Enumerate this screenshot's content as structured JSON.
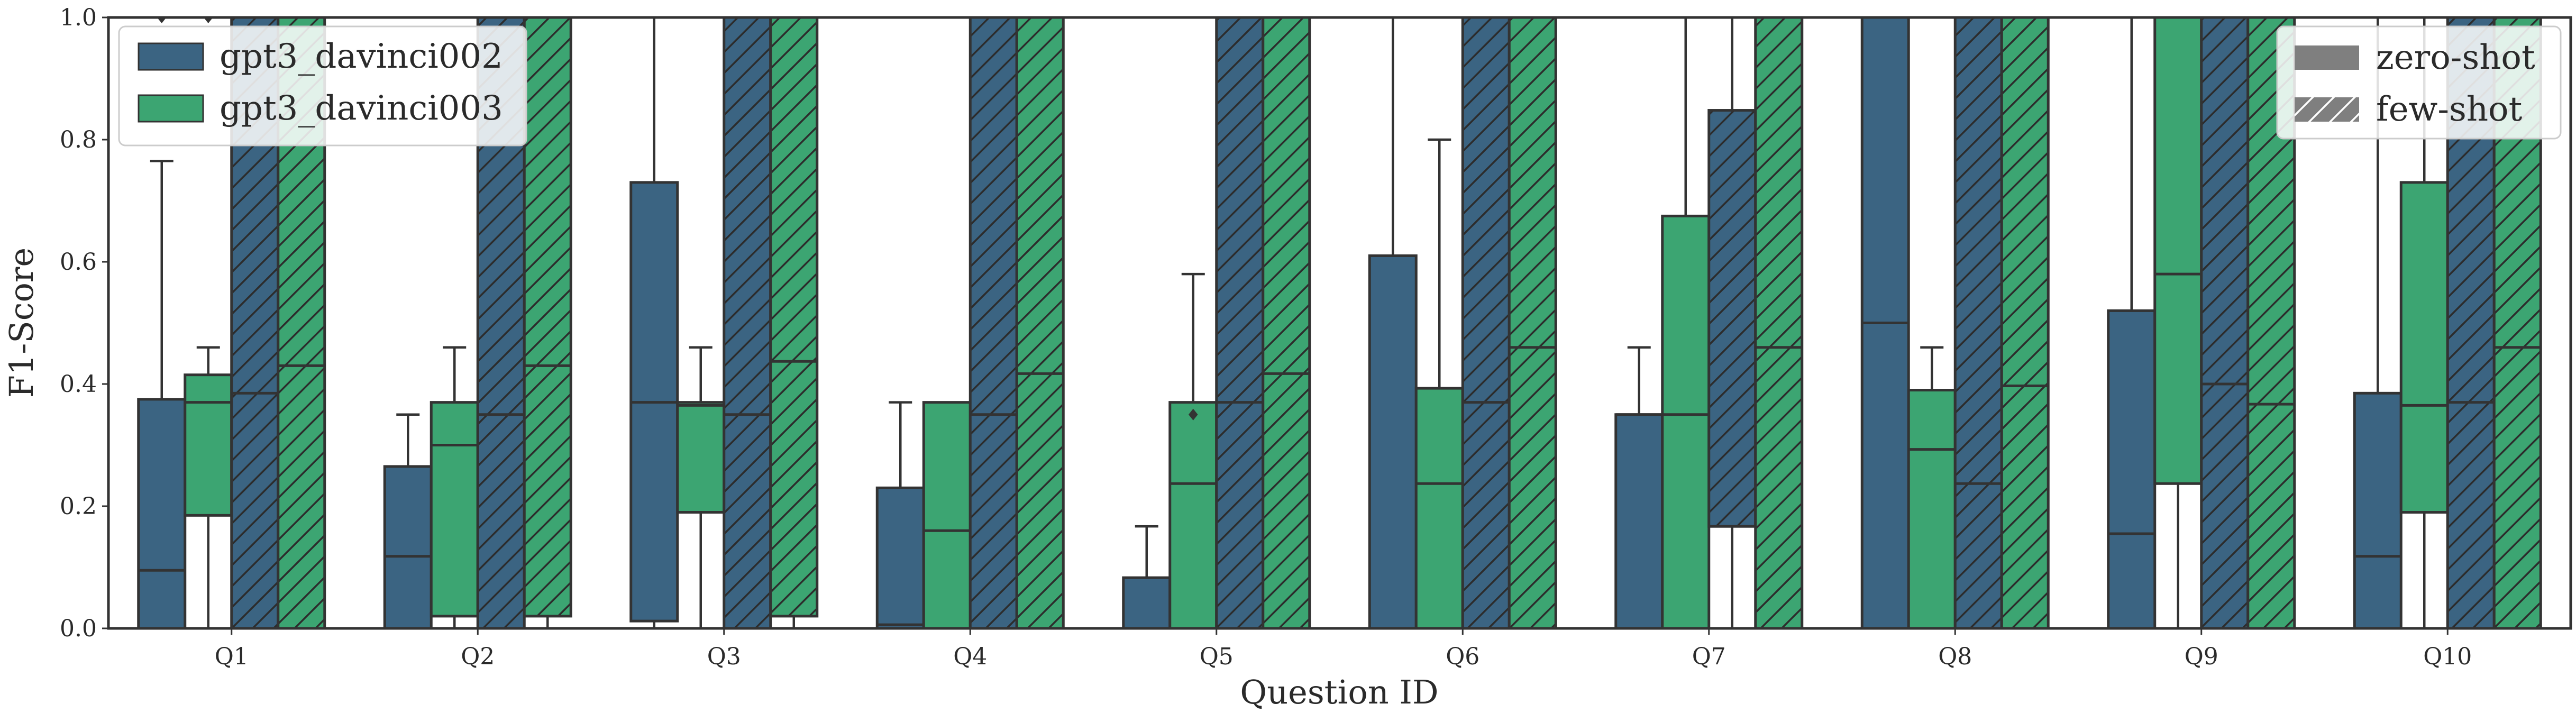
{
  "chart_data": {
    "type": "box",
    "xlabel": "Question ID",
    "ylabel": "F1-Score",
    "ylim": [
      0,
      1
    ],
    "yticks": [
      "0.0",
      "0.2",
      "0.4",
      "0.6",
      "0.8",
      "1.0"
    ],
    "categories": [
      "Q1",
      "Q2",
      "Q3",
      "Q4",
      "Q5",
      "Q6",
      "Q7",
      "Q8",
      "Q9",
      "Q10"
    ],
    "grid": false,
    "legend_models": {
      "placement": "top-left",
      "entries": [
        {
          "label": "gpt3_davinci002",
          "color": "#3b6482"
        },
        {
          "label": "gpt3_davinci003",
          "color": "#3ca572"
        }
      ]
    },
    "legend_settings": {
      "placement": "top-right",
      "entries": [
        {
          "label": "zero-shot",
          "style": "solid"
        },
        {
          "label": "few-shot",
          "style": "hatched"
        }
      ]
    },
    "colors": {
      "davinci002": "#3b6482",
      "davinci003": "#3ca572",
      "edge": "#333333"
    },
    "series": [
      {
        "model": "gpt3_davinci002",
        "setting": "zero-shot",
        "boxes": [
          {
            "q1": 0.0,
            "median": 0.095,
            "q3": 0.375,
            "whislo": 0.0,
            "whishi": 0.765,
            "fliers": [
              1.0
            ]
          },
          {
            "q1": 0.0,
            "median": 0.118,
            "q3": 0.265,
            "whislo": 0.0,
            "whishi": 0.35,
            "fliers": []
          },
          {
            "q1": 0.012,
            "median": 0.37,
            "q3": 0.73,
            "whislo": 0.0,
            "whishi": 1.0,
            "fliers": []
          },
          {
            "q1": 0.0,
            "median": 0.006,
            "q3": 0.23,
            "whislo": 0.0,
            "whishi": 0.37,
            "fliers": []
          },
          {
            "q1": 0.0,
            "median": 0.0,
            "q3": 0.083,
            "whislo": 0.0,
            "whishi": 0.167,
            "fliers": []
          },
          {
            "q1": 0.0,
            "median": 0.0,
            "q3": 0.61,
            "whislo": 0.0,
            "whishi": 1.0,
            "fliers": []
          },
          {
            "q1": 0.0,
            "median": 0.35,
            "q3": 0.35,
            "whislo": 0.0,
            "whishi": 0.46,
            "fliers": []
          },
          {
            "q1": 0.0,
            "median": 0.5,
            "q3": 1.0,
            "whislo": 0.0,
            "whishi": 1.0,
            "fliers": []
          },
          {
            "q1": 0.0,
            "median": 0.155,
            "q3": 0.52,
            "whislo": 0.0,
            "whishi": 1.0,
            "fliers": []
          },
          {
            "q1": 0.0,
            "median": 0.118,
            "q3": 0.385,
            "whislo": 0.0,
            "whishi": 1.0,
            "fliers": []
          }
        ]
      },
      {
        "model": "gpt3_davinci003",
        "setting": "zero-shot",
        "boxes": [
          {
            "q1": 0.185,
            "median": 0.37,
            "q3": 0.415,
            "whislo": 0.0,
            "whishi": 0.46,
            "fliers": [
              1.0
            ]
          },
          {
            "q1": 0.02,
            "median": 0.3,
            "q3": 0.37,
            "whislo": 0.0,
            "whishi": 0.46,
            "fliers": []
          },
          {
            "q1": 0.19,
            "median": 0.365,
            "q3": 0.37,
            "whislo": 0.0,
            "whishi": 0.46,
            "fliers": []
          },
          {
            "q1": 0.0,
            "median": 0.16,
            "q3": 0.37,
            "whislo": 0.0,
            "whishi": 0.37,
            "fliers": []
          },
          {
            "q1": 0.0,
            "median": 0.237,
            "q3": 0.37,
            "whislo": 0.0,
            "whishi": 0.58,
            "fliers": [
              0.35
            ]
          },
          {
            "q1": 0.0,
            "median": 0.237,
            "q3": 0.393,
            "whislo": 0.0,
            "whishi": 0.8,
            "fliers": []
          },
          {
            "q1": 0.0,
            "median": 0.35,
            "q3": 0.675,
            "whislo": 0.0,
            "whishi": 1.0,
            "fliers": []
          },
          {
            "q1": 0.0,
            "median": 0.293,
            "q3": 0.39,
            "whislo": 0.0,
            "whishi": 0.46,
            "fliers": []
          },
          {
            "q1": 0.237,
            "median": 0.58,
            "q3": 1.0,
            "whislo": 0.0,
            "whishi": 1.0,
            "fliers": []
          },
          {
            "q1": 0.19,
            "median": 0.365,
            "q3": 0.73,
            "whislo": 0.0,
            "whishi": 1.0,
            "fliers": []
          }
        ]
      },
      {
        "model": "gpt3_davinci002",
        "setting": "few-shot",
        "boxes": [
          {
            "q1": 0.0,
            "median": 0.385,
            "q3": 1.0,
            "whislo": 0.0,
            "whishi": 1.0,
            "fliers": []
          },
          {
            "q1": 0.0,
            "median": 0.35,
            "q3": 1.0,
            "whislo": 0.0,
            "whishi": 1.0,
            "fliers": []
          },
          {
            "q1": 0.0,
            "median": 0.35,
            "q3": 1.0,
            "whislo": 0.0,
            "whishi": 1.0,
            "fliers": []
          },
          {
            "q1": 0.0,
            "median": 0.35,
            "q3": 1.0,
            "whislo": 0.0,
            "whishi": 1.0,
            "fliers": []
          },
          {
            "q1": 0.0,
            "median": 0.37,
            "q3": 1.0,
            "whislo": 0.0,
            "whishi": 1.0,
            "fliers": []
          },
          {
            "q1": 0.0,
            "median": 0.37,
            "q3": 1.0,
            "whislo": 0.0,
            "whishi": 1.0,
            "fliers": []
          },
          {
            "q1": 0.167,
            "median": 0.167,
            "q3": 0.848,
            "whislo": 0.0,
            "whishi": 1.0,
            "fliers": []
          },
          {
            "q1": 0.0,
            "median": 0.237,
            "q3": 1.0,
            "whislo": 0.0,
            "whishi": 1.0,
            "fliers": []
          },
          {
            "q1": 0.0,
            "median": 0.4,
            "q3": 1.0,
            "whislo": 0.0,
            "whishi": 1.0,
            "fliers": []
          },
          {
            "q1": 0.0,
            "median": 0.37,
            "q3": 1.0,
            "whislo": 0.0,
            "whishi": 1.0,
            "fliers": []
          }
        ]
      },
      {
        "model": "gpt3_davinci003",
        "setting": "few-shot",
        "boxes": [
          {
            "q1": 0.0,
            "median": 0.43,
            "q3": 1.0,
            "whislo": 0.0,
            "whishi": 1.0,
            "fliers": []
          },
          {
            "q1": 0.02,
            "median": 0.43,
            "q3": 1.0,
            "whislo": 0.0,
            "whishi": 1.0,
            "fliers": []
          },
          {
            "q1": 0.02,
            "median": 0.437,
            "q3": 1.0,
            "whislo": 0.0,
            "whishi": 1.0,
            "fliers": []
          },
          {
            "q1": 0.0,
            "median": 0.417,
            "q3": 1.0,
            "whislo": 0.0,
            "whishi": 1.0,
            "fliers": []
          },
          {
            "q1": 0.0,
            "median": 0.417,
            "q3": 1.0,
            "whislo": 0.0,
            "whishi": 1.0,
            "fliers": []
          },
          {
            "q1": 0.0,
            "median": 0.46,
            "q3": 1.0,
            "whislo": 0.0,
            "whishi": 1.0,
            "fliers": []
          },
          {
            "q1": 0.0,
            "median": 0.46,
            "q3": 1.0,
            "whislo": 0.0,
            "whishi": 1.0,
            "fliers": []
          },
          {
            "q1": 0.0,
            "median": 0.397,
            "q3": 1.0,
            "whislo": 0.0,
            "whishi": 1.0,
            "fliers": []
          },
          {
            "q1": 0.0,
            "median": 0.367,
            "q3": 1.0,
            "whislo": 0.0,
            "whishi": 1.0,
            "fliers": []
          },
          {
            "q1": 0.0,
            "median": 0.46,
            "q3": 1.0,
            "whislo": 0.0,
            "whishi": 1.0,
            "fliers": []
          }
        ]
      }
    ]
  }
}
